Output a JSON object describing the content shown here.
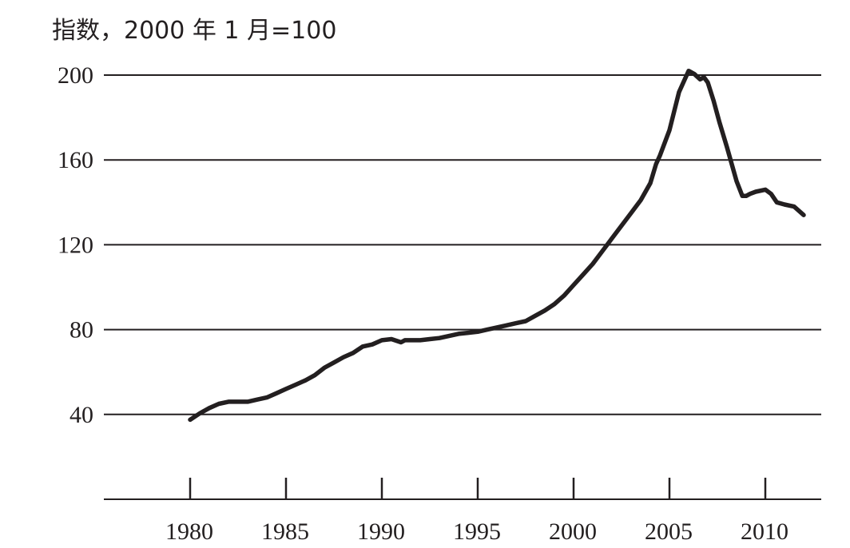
{
  "chart_data": {
    "type": "line",
    "title": "",
    "ylabel": "指数，2000 年 1 月=100",
    "xlabel": "",
    "xlim": [
      1980,
      2012.5
    ],
    "ylim": [
      0,
      200
    ],
    "grid": "horizontal",
    "line_color": "#231f20",
    "x_ticks": [
      1980,
      1985,
      1990,
      1995,
      2000,
      2005,
      2010
    ],
    "x_tick_labels": [
      "1980",
      "1985",
      "1990",
      "1995",
      "2000",
      "2005",
      "2010"
    ],
    "y_ticks": [
      40,
      80,
      120,
      160,
      200
    ],
    "y_tick_labels": [
      "40",
      "80",
      "120",
      "160",
      "200"
    ],
    "series": [
      {
        "x": [
          1980.0,
          1980.5,
          1981.0,
          1981.5,
          1982.0,
          1982.5,
          1983.0,
          1983.5,
          1984.0,
          1984.5,
          1985.0,
          1985.5,
          1986.0,
          1986.5,
          1987.0,
          1987.5,
          1988.0,
          1988.5,
          1989.0,
          1989.5,
          1990.0,
          1990.5,
          1991.0,
          1991.2,
          1991.5,
          1992.0,
          1992.5,
          1993.0,
          1993.5,
          1994.0,
          1994.5,
          1995.0,
          1995.5,
          1996.0,
          1996.5,
          1997.0,
          1997.5,
          1998.0,
          1998.5,
          1999.0,
          1999.5,
          2000.0,
          2000.5,
          2001.0,
          2001.5,
          2002.0,
          2002.5,
          2003.0,
          2003.5,
          2004.0,
          2004.3,
          2004.5,
          2005.0,
          2005.25,
          2005.5,
          2005.8,
          2006.0,
          2006.3,
          2006.6,
          2006.8,
          2007.0,
          2007.3,
          2007.6,
          2008.0,
          2008.5,
          2008.8,
          2009.0,
          2009.2,
          2009.5,
          2010.0,
          2010.3,
          2010.6,
          2011.0,
          2011.5,
          2012.0
        ],
        "y": [
          37.5,
          40.5,
          43,
          45,
          46,
          46,
          46,
          47,
          48,
          50,
          52,
          54,
          56,
          58.5,
          62,
          64.5,
          67,
          69,
          72,
          73,
          75,
          75.5,
          74,
          75,
          75,
          75,
          75.5,
          76,
          77,
          78,
          78.5,
          79,
          80,
          81,
          82,
          83,
          84,
          86.5,
          89,
          92,
          96,
          101,
          106,
          111,
          117,
          123,
          129,
          135,
          141,
          149,
          158,
          162,
          174,
          183,
          192,
          198,
          202,
          200.5,
          198,
          199,
          196.5,
          188,
          178,
          166,
          150,
          143,
          143,
          144,
          145,
          146,
          144,
          140,
          139,
          138,
          134
        ]
      }
    ]
  }
}
